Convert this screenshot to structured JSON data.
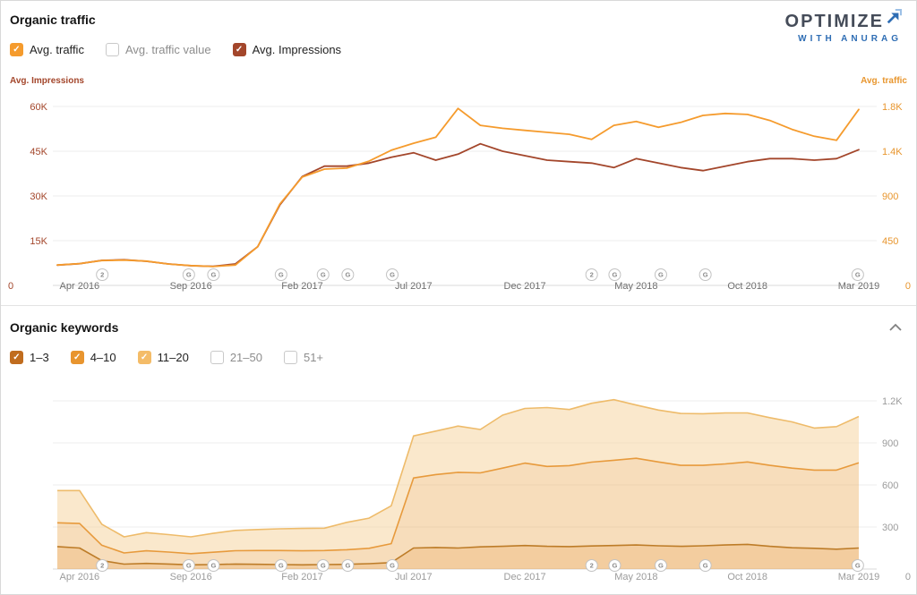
{
  "logo": {
    "line1": "OPTIMIZE",
    "line2": "WITH ANURAG",
    "accent": "#2e6db4",
    "accent_light": "#9cc0e6",
    "text_color": "#454c59"
  },
  "traffic_section": {
    "title": "Organic traffic",
    "legend": [
      {
        "label": "Avg. traffic",
        "checked": true,
        "color": "#f59b2d"
      },
      {
        "label": "Avg. traffic value",
        "checked": false,
        "color": "#f59b2d"
      },
      {
        "label": "Avg. Impressions",
        "checked": true,
        "color": "#a3462b"
      }
    ],
    "left_axis_label": "Avg. Impressions",
    "right_axis_label": "Avg. traffic",
    "left_ticks": [
      "60K",
      "45K",
      "30K",
      "15K"
    ],
    "right_ticks": [
      "1.8K",
      "1.4K",
      "900",
      "450"
    ],
    "zero_left": "0",
    "zero_right": "0"
  },
  "keywords_section": {
    "title": "Organic keywords",
    "legend": [
      {
        "label": "1–3",
        "checked": true,
        "color": "#c06c1e"
      },
      {
        "label": "4–10",
        "checked": true,
        "color": "#e8952f"
      },
      {
        "label": "11–20",
        "checked": true,
        "color": "#f4bc68"
      },
      {
        "label": "21–50",
        "checked": false
      },
      {
        "label": "51+",
        "checked": false
      }
    ],
    "right_ticks": [
      "1.2K",
      "900",
      "600",
      "300"
    ],
    "zero_right": "0"
  },
  "markers": [
    {
      "pos": 0.06,
      "label": "2"
    },
    {
      "pos": 0.165,
      "label": "G"
    },
    {
      "pos": 0.195,
      "label": "G"
    },
    {
      "pos": 0.277,
      "label": "G"
    },
    {
      "pos": 0.328,
      "label": "G"
    },
    {
      "pos": 0.358,
      "label": "G"
    },
    {
      "pos": 0.412,
      "label": "G"
    },
    {
      "pos": 0.654,
      "label": "2"
    },
    {
      "pos": 0.682,
      "label": "G"
    },
    {
      "pos": 0.738,
      "label": "G"
    },
    {
      "pos": 0.792,
      "label": "G"
    },
    {
      "pos": 0.977,
      "label": "G"
    }
  ],
  "chart_data": [
    {
      "type": "line",
      "title": "Organic traffic",
      "x": [
        "Mar 2016",
        "Apr 2016",
        "May 2016",
        "Jun 2016",
        "Jul 2016",
        "Aug 2016",
        "Sep 2016",
        "Oct 2016",
        "Nov 2016",
        "Dec 2016",
        "Jan 2017",
        "Feb 2017",
        "Mar 2017",
        "Apr 2017",
        "May 2017",
        "Jun 2017",
        "Jul 2017",
        "Aug 2017",
        "Sep 2017",
        "Oct 2017",
        "Nov 2017",
        "Dec 2017",
        "Jan 2018",
        "Feb 2018",
        "Mar 2018",
        "Apr 2018",
        "May 2018",
        "Jun 2018",
        "Jul 2018",
        "Aug 2018",
        "Sep 2018",
        "Oct 2018",
        "Nov 2018",
        "Dec 2018",
        "Jan 2019",
        "Feb 2019",
        "Mar 2019"
      ],
      "x_tick_labels": [
        "Apr 2016",
        "Sep 2016",
        "Feb 2017",
        "Jul 2017",
        "Dec 2017",
        "May 2018",
        "Oct 2018",
        "Mar 2019"
      ],
      "x_tick_indices": [
        1,
        6,
        11,
        16,
        21,
        26,
        31,
        36
      ],
      "series": [
        {
          "name": "Avg. Impressions",
          "axis": "left",
          "color": "#a3462b",
          "values": [
            6800,
            7300,
            8400,
            8600,
            8100,
            7200,
            6600,
            6400,
            7200,
            13000,
            27000,
            36500,
            40000,
            40000,
            41000,
            43000,
            44500,
            42000,
            44000,
            47500,
            45000,
            43500,
            42000,
            41500,
            41000,
            39500,
            42500,
            41000,
            39500,
            38500,
            40000,
            41500,
            42500,
            42500,
            42000,
            42500,
            45500
          ]
        },
        {
          "name": "Avg. traffic",
          "axis": "right",
          "color": "#f59b2d",
          "values": [
            205,
            220,
            250,
            255,
            245,
            215,
            200,
            190,
            205,
            390,
            820,
            1090,
            1170,
            1180,
            1250,
            1360,
            1430,
            1490,
            1780,
            1610,
            1580,
            1560,
            1540,
            1520,
            1470,
            1610,
            1650,
            1590,
            1640,
            1710,
            1730,
            1720,
            1660,
            1570,
            1500,
            1460,
            1770
          ]
        }
      ],
      "left_ylim": [
        0,
        60000
      ],
      "right_ylim": [
        0,
        1800
      ],
      "grid": true,
      "legend_position": "top"
    },
    {
      "type": "area",
      "stacked": true,
      "title": "Organic keywords",
      "x": [
        "Mar 2016",
        "Apr 2016",
        "May 2016",
        "Jun 2016",
        "Jul 2016",
        "Aug 2016",
        "Sep 2016",
        "Oct 2016",
        "Nov 2016",
        "Dec 2016",
        "Jan 2017",
        "Feb 2017",
        "Mar 2017",
        "Apr 2017",
        "May 2017",
        "Jun 2017",
        "Jul 2017",
        "Aug 2017",
        "Sep 2017",
        "Oct 2017",
        "Nov 2017",
        "Dec 2017",
        "Jan 2018",
        "Feb 2018",
        "Mar 2018",
        "Apr 2018",
        "May 2018",
        "Jun 2018",
        "Jul 2018",
        "Aug 2018",
        "Sep 2018",
        "Oct 2018",
        "Nov 2018",
        "Dec 2018",
        "Jan 2019",
        "Feb 2019",
        "Mar 2019"
      ],
      "x_tick_labels": [
        "Apr 2016",
        "Sep 2016",
        "Feb 2017",
        "Jul 2017",
        "Dec 2017",
        "May 2018",
        "Oct 2018",
        "Mar 2019"
      ],
      "x_tick_indices": [
        1,
        6,
        11,
        16,
        21,
        26,
        31,
        36
      ],
      "series": [
        {
          "name": "1–3",
          "color": "#bd7c28",
          "fill": "rgba(233,164,80,0.55)",
          "values": [
            160,
            150,
            60,
            35,
            40,
            36,
            30,
            32,
            36,
            34,
            32,
            30,
            32,
            34,
            38,
            46,
            150,
            154,
            150,
            158,
            162,
            168,
            162,
            160,
            165,
            168,
            172,
            166,
            162,
            166,
            172,
            176,
            162,
            152,
            148,
            142,
            150
          ]
        },
        {
          "name": "4–10",
          "color": "#e79a3c",
          "fill": "rgba(240,188,120,0.5)",
          "values": [
            170,
            175,
            110,
            80,
            90,
            85,
            80,
            88,
            95,
            98,
            100,
            100,
            100,
            104,
            110,
            135,
            500,
            520,
            540,
            528,
            558,
            588,
            570,
            578,
            598,
            608,
            618,
            598,
            578,
            574,
            578,
            588,
            578,
            568,
            558,
            564,
            608
          ]
        },
        {
          "name": "11–20",
          "color": "#eebb6a",
          "fill": "rgba(247,217,170,0.6)",
          "values": [
            230,
            235,
            150,
            115,
            130,
            125,
            120,
            135,
            145,
            150,
            155,
            160,
            160,
            195,
            215,
            270,
            300,
            310,
            330,
            310,
            378,
            390,
            420,
            400,
            420,
            432,
            380,
            370,
            370,
            368,
            364,
            350,
            340,
            330,
            300,
            310,
            330
          ]
        }
      ],
      "ylim": [
        0,
        1200
      ],
      "grid": true,
      "legend_position": "top"
    }
  ]
}
